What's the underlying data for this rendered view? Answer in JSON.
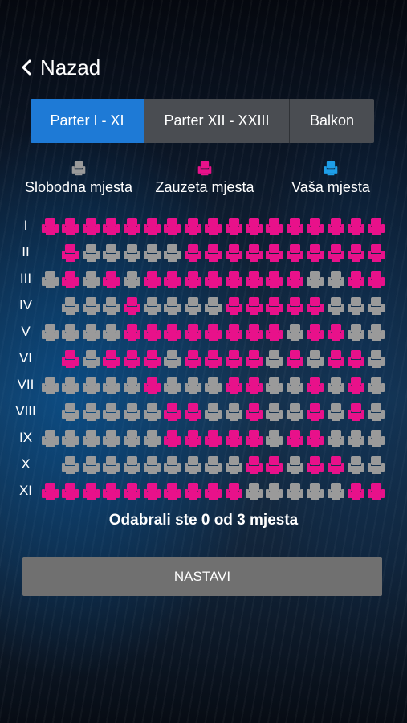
{
  "header": {
    "back_label": "Nazad"
  },
  "tabs": [
    {
      "label": "Parter I - XI",
      "active": true
    },
    {
      "label": "Parter XII - XXIII",
      "active": false
    },
    {
      "label": "Balkon",
      "active": false
    }
  ],
  "legend": {
    "free_label": "Slobodna mjesta",
    "taken_label": "Zauzeta mjesta",
    "yours_label": "Vaša mjesta"
  },
  "colors": {
    "free": "#9a9a9a",
    "taken": "#e8118a",
    "yours": "#1e9ee8",
    "active_tab": "#1e7ad6"
  },
  "rows": [
    {
      "label": "I",
      "seats": "TTTTTTTTTTTTTTTTT"
    },
    {
      "label": "II",
      "seats": "_TFFFFFTTTTTTTTTT"
    },
    {
      "label": "III",
      "seats": "FTFTFTTTTTTTTFFTT"
    },
    {
      "label": "IV",
      "seats": "_FFFTFFFFTTTTTFFF"
    },
    {
      "label": "V",
      "seats": "FFFFTTTTTTTTFTTFF"
    },
    {
      "label": "VI",
      "seats": "_TFTTTFTTTTFTFTTF"
    },
    {
      "label": "VII",
      "seats": "FFFFFTFFFTTFFTFTF"
    },
    {
      "label": "VIII",
      "seats": "_FFFFFTTFFTFFTFTF"
    },
    {
      "label": "IX",
      "seats": "FFFFFFTTTTTFTTFFF"
    },
    {
      "label": "X",
      "seats": "_FFFFFFFFFTTFTTFF"
    },
    {
      "label": "XI",
      "seats": "TTTTTTTTTTFFFFFTT"
    }
  ],
  "summary": "Odabrali ste 0 od 3 mjesta",
  "next_button_label": "NASTAVI"
}
